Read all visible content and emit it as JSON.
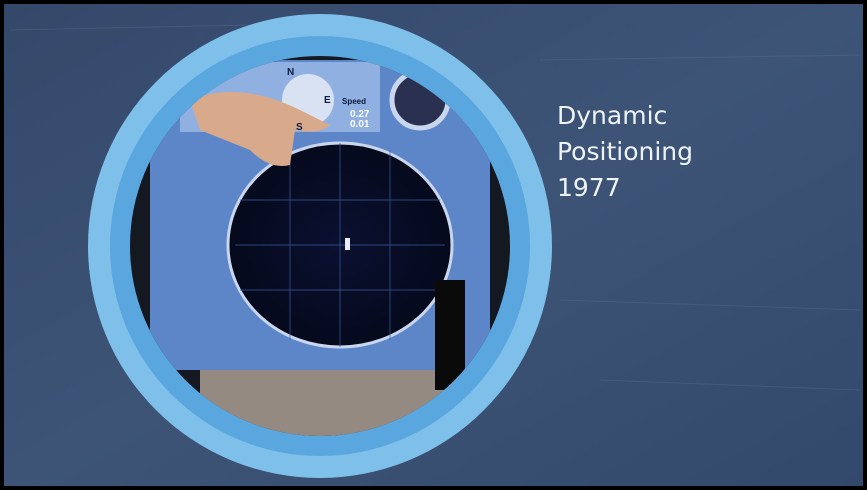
{
  "slide": {
    "title_lines": [
      "Dynamic",
      "Positioning",
      "1977"
    ]
  },
  "photo": {
    "screen_texts": [
      "N",
      "E",
      "S",
      "Speed",
      "0.27",
      "0.01"
    ]
  }
}
